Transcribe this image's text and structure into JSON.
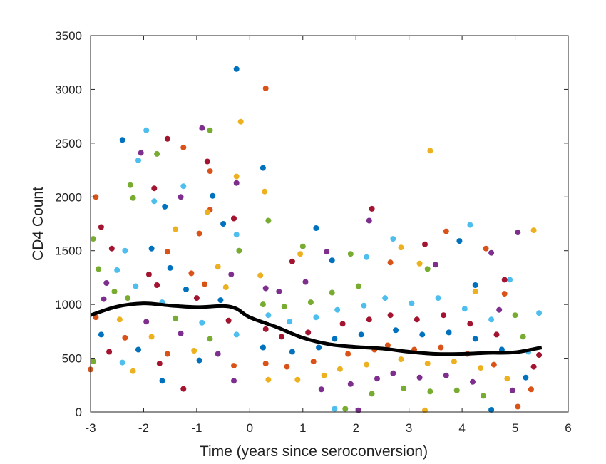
{
  "chart_data": {
    "type": "scatter",
    "xlabel": "Time (years since seroconversion)",
    "ylabel": "CD4 Count",
    "xlim": [
      -3,
      6
    ],
    "ylim": [
      0,
      3500
    ],
    "x_ticks": [
      "-3",
      "-2",
      "-1",
      "0",
      "1",
      "2",
      "3",
      "4",
      "5",
      "6"
    ],
    "y_ticks": [
      "0",
      "500",
      "1000",
      "1500",
      "2000",
      "2500",
      "3000",
      "3500"
    ],
    "grid": false,
    "legend": "none",
    "point_colors": [
      "#0072BD",
      "#D95319",
      "#EDB120",
      "#7E2F8E",
      "#77AC30",
      "#4DBEEE",
      "#A2142F"
    ],
    "smooth_curve": {
      "color": "#000000",
      "x": [
        -3,
        -2.5,
        -2,
        -1.5,
        -1,
        -0.5,
        -0.25,
        0,
        0.5,
        1,
        1.5,
        2,
        2.5,
        3,
        3.5,
        4,
        4.5,
        5,
        5.5
      ],
      "y": [
        900,
        980,
        1010,
        990,
        975,
        985,
        960,
        880,
        790,
        690,
        630,
        605,
        590,
        560,
        540,
        540,
        550,
        555,
        600
      ]
    },
    "points": [
      {
        "x": -0.25,
        "y": 3190
      },
      {
        "x": 0.3,
        "y": 3010
      },
      {
        "x": -0.17,
        "y": 2700
      },
      {
        "x": -0.9,
        "y": 2640
      },
      {
        "x": -0.75,
        "y": 2620
      },
      {
        "x": -1.95,
        "y": 2620
      },
      {
        "x": -1.55,
        "y": 2540
      },
      {
        "x": -2.4,
        "y": 2530
      },
      {
        "x": -1.25,
        "y": 2460
      },
      {
        "x": 3.4,
        "y": 2430
      },
      {
        "x": -2.05,
        "y": 2410
      },
      {
        "x": -1.75,
        "y": 2400
      },
      {
        "x": -2.1,
        "y": 2340
      },
      {
        "x": -0.8,
        "y": 2330
      },
      {
        "x": 0.25,
        "y": 2270
      },
      {
        "x": -0.75,
        "y": 2240
      },
      {
        "x": -0.25,
        "y": 2190
      },
      {
        "x": -0.25,
        "y": 2130
      },
      {
        "x": -2.25,
        "y": 2110
      },
      {
        "x": -1.25,
        "y": 2100
      },
      {
        "x": -1.8,
        "y": 2080
      },
      {
        "x": -0.7,
        "y": 2010
      },
      {
        "x": -2.9,
        "y": 2000
      },
      {
        "x": 0.28,
        "y": 2050
      },
      {
        "x": -1.3,
        "y": 2000
      },
      {
        "x": -2.2,
        "y": 1990
      },
      {
        "x": -1.8,
        "y": 1960
      },
      {
        "x": 2.3,
        "y": 1890
      },
      {
        "x": -1.6,
        "y": 1910
      },
      {
        "x": -0.75,
        "y": 1880
      },
      {
        "x": -0.8,
        "y": 1860
      },
      {
        "x": 2.25,
        "y": 1780
      },
      {
        "x": 0.35,
        "y": 1780
      },
      {
        "x": 4.15,
        "y": 1740
      },
      {
        "x": -2.8,
        "y": 1720
      },
      {
        "x": 1.25,
        "y": 1710
      },
      {
        "x": 3.7,
        "y": 1680
      },
      {
        "x": 5.35,
        "y": 1690
      },
      {
        "x": 5.05,
        "y": 1670
      },
      {
        "x": -2.95,
        "y": 1610
      },
      {
        "x": 2.7,
        "y": 1610
      },
      {
        "x": 3.3,
        "y": 1560
      },
      {
        "x": 3.95,
        "y": 1590
      },
      {
        "x": 4.45,
        "y": 1520
      },
      {
        "x": 2.85,
        "y": 1530
      },
      {
        "x": 4.55,
        "y": 1480
      },
      {
        "x": 1.0,
        "y": 1540
      },
      {
        "x": -2.35,
        "y": 1500
      },
      {
        "x": -2.6,
        "y": 1520
      },
      {
        "x": -1.85,
        "y": 1520
      },
      {
        "x": -1.55,
        "y": 1490
      },
      {
        "x": 0.95,
        "y": 1470
      },
      {
        "x": 1.45,
        "y": 1490
      },
      {
        "x": 1.9,
        "y": 1470
      },
      {
        "x": 2.2,
        "y": 1440
      },
      {
        "x": 0.8,
        "y": 1400
      },
      {
        "x": 1.55,
        "y": 1410
      },
      {
        "x": 2.65,
        "y": 1390
      },
      {
        "x": 3.2,
        "y": 1380
      },
      {
        "x": 3.5,
        "y": 1370
      },
      {
        "x": 3.35,
        "y": 1330
      },
      {
        "x": 4.9,
        "y": 1230
      },
      {
        "x": 4.8,
        "y": 1230
      },
      {
        "x": 4.25,
        "y": 1180
      },
      {
        "x": 4.8,
        "y": 1100
      },
      {
        "x": 4.25,
        "y": 1120
      },
      {
        "x": 4.7,
        "y": 950
      },
      {
        "x": 5.0,
        "y": 900
      },
      {
        "x": 5.45,
        "y": 920
      },
      {
        "x": 5.45,
        "y": 530
      },
      {
        "x": 4.55,
        "y": 20
      },
      {
        "x": 5.05,
        "y": 50
      },
      {
        "x": 3.3,
        "y": 15
      },
      {
        "x": 2.05,
        "y": 15
      },
      {
        "x": 1.8,
        "y": 30
      },
      {
        "x": 1.6,
        "y": 30
      },
      {
        "x": -1.25,
        "y": 215
      },
      {
        "x": -1.65,
        "y": 290
      },
      {
        "x": -3.0,
        "y": 395
      },
      {
        "x": -2.2,
        "y": 380
      },
      {
        "x": -0.3,
        "y": 290
      },
      {
        "x": -2.85,
        "y": 1330
      },
      {
        "x": -2.5,
        "y": 1320
      },
      {
        "x": -1.9,
        "y": 1280
      },
      {
        "x": -1.5,
        "y": 1340
      },
      {
        "x": -1.1,
        "y": 1290
      },
      {
        "x": -0.6,
        "y": 1350
      },
      {
        "x": -0.35,
        "y": 1280
      },
      {
        "x": -0.2,
        "y": 1500
      },
      {
        "x": -0.25,
        "y": 1650
      },
      {
        "x": -0.3,
        "y": 1800
      },
      {
        "x": -0.5,
        "y": 1750
      },
      {
        "x": -0.95,
        "y": 1660
      },
      {
        "x": -1.4,
        "y": 1700
      },
      {
        "x": -2.7,
        "y": 1200
      },
      {
        "x": -2.55,
        "y": 1120
      },
      {
        "x": -2.15,
        "y": 1170
      },
      {
        "x": -1.75,
        "y": 1180
      },
      {
        "x": -1.2,
        "y": 1140
      },
      {
        "x": -0.85,
        "y": 1190
      },
      {
        "x": -0.45,
        "y": 1160
      },
      {
        "x": -2.75,
        "y": 1050
      },
      {
        "x": -2.3,
        "y": 1060
      },
      {
        "x": -1.65,
        "y": 1020
      },
      {
        "x": -1.0,
        "y": 1060
      },
      {
        "x": -0.55,
        "y": 1040
      },
      {
        "x": -2.9,
        "y": 880
      },
      {
        "x": -2.45,
        "y": 860
      },
      {
        "x": -1.95,
        "y": 840
      },
      {
        "x": -1.4,
        "y": 870
      },
      {
        "x": -0.9,
        "y": 830
      },
      {
        "x": -0.4,
        "y": 850
      },
      {
        "x": -2.8,
        "y": 720
      },
      {
        "x": -2.35,
        "y": 690
      },
      {
        "x": -1.85,
        "y": 700
      },
      {
        "x": -1.3,
        "y": 730
      },
      {
        "x": -0.75,
        "y": 680
      },
      {
        "x": -0.25,
        "y": 720
      },
      {
        "x": -2.65,
        "y": 560
      },
      {
        "x": -2.1,
        "y": 580
      },
      {
        "x": -1.55,
        "y": 540
      },
      {
        "x": -1.05,
        "y": 570
      },
      {
        "x": -0.6,
        "y": 540
      },
      {
        "x": -2.95,
        "y": 470
      },
      {
        "x": -2.4,
        "y": 460
      },
      {
        "x": -1.7,
        "y": 450
      },
      {
        "x": -0.95,
        "y": 480
      },
      {
        "x": -0.3,
        "y": 430
      },
      {
        "x": 0.2,
        "y": 1270
      },
      {
        "x": 0.3,
        "y": 1150
      },
      {
        "x": 0.25,
        "y": 1000
      },
      {
        "x": 0.35,
        "y": 900
      },
      {
        "x": 0.3,
        "y": 770
      },
      {
        "x": 0.25,
        "y": 600
      },
      {
        "x": 0.3,
        "y": 450
      },
      {
        "x": 0.35,
        "y": 300
      },
      {
        "x": 0.55,
        "y": 1120
      },
      {
        "x": 0.65,
        "y": 980
      },
      {
        "x": 0.75,
        "y": 840
      },
      {
        "x": 0.6,
        "y": 700
      },
      {
        "x": 0.8,
        "y": 560
      },
      {
        "x": 0.7,
        "y": 420
      },
      {
        "x": 0.9,
        "y": 300
      },
      {
        "x": 1.05,
        "y": 1210
      },
      {
        "x": 1.15,
        "y": 1020
      },
      {
        "x": 1.25,
        "y": 880
      },
      {
        "x": 1.1,
        "y": 740
      },
      {
        "x": 1.3,
        "y": 600
      },
      {
        "x": 1.2,
        "y": 470
      },
      {
        "x": 1.4,
        "y": 340
      },
      {
        "x": 1.35,
        "y": 210
      },
      {
        "x": 1.55,
        "y": 1110
      },
      {
        "x": 1.65,
        "y": 950
      },
      {
        "x": 1.75,
        "y": 820
      },
      {
        "x": 1.6,
        "y": 680
      },
      {
        "x": 1.85,
        "y": 540
      },
      {
        "x": 1.7,
        "y": 400
      },
      {
        "x": 1.9,
        "y": 260
      },
      {
        "x": 2.05,
        "y": 1170
      },
      {
        "x": 2.15,
        "y": 990
      },
      {
        "x": 2.25,
        "y": 860
      },
      {
        "x": 2.1,
        "y": 720
      },
      {
        "x": 2.35,
        "y": 580
      },
      {
        "x": 2.2,
        "y": 440
      },
      {
        "x": 2.4,
        "y": 310
      },
      {
        "x": 2.3,
        "y": 170
      },
      {
        "x": 2.55,
        "y": 1060
      },
      {
        "x": 2.65,
        "y": 900
      },
      {
        "x": 2.75,
        "y": 760
      },
      {
        "x": 2.6,
        "y": 620
      },
      {
        "x": 2.85,
        "y": 490
      },
      {
        "x": 2.7,
        "y": 360
      },
      {
        "x": 2.9,
        "y": 220
      },
      {
        "x": 3.05,
        "y": 1010
      },
      {
        "x": 3.15,
        "y": 860
      },
      {
        "x": 3.25,
        "y": 720
      },
      {
        "x": 3.1,
        "y": 580
      },
      {
        "x": 3.35,
        "y": 450
      },
      {
        "x": 3.2,
        "y": 320
      },
      {
        "x": 3.4,
        "y": 190
      },
      {
        "x": 3.55,
        "y": 1060
      },
      {
        "x": 3.65,
        "y": 900
      },
      {
        "x": 3.75,
        "y": 740
      },
      {
        "x": 3.6,
        "y": 600
      },
      {
        "x": 3.85,
        "y": 470
      },
      {
        "x": 3.7,
        "y": 340
      },
      {
        "x": 3.9,
        "y": 200
      },
      {
        "x": 4.05,
        "y": 960
      },
      {
        "x": 4.15,
        "y": 820
      },
      {
        "x": 4.25,
        "y": 680
      },
      {
        "x": 4.1,
        "y": 540
      },
      {
        "x": 4.35,
        "y": 410
      },
      {
        "x": 4.2,
        "y": 280
      },
      {
        "x": 4.4,
        "y": 150
      },
      {
        "x": 4.55,
        "y": 860
      },
      {
        "x": 4.65,
        "y": 720
      },
      {
        "x": 4.75,
        "y": 580
      },
      {
        "x": 4.6,
        "y": 440
      },
      {
        "x": 4.85,
        "y": 310
      },
      {
        "x": 4.95,
        "y": 200
      },
      {
        "x": 5.15,
        "y": 700
      },
      {
        "x": 5.25,
        "y": 560
      },
      {
        "x": 5.35,
        "y": 420
      },
      {
        "x": 5.2,
        "y": 320
      },
      {
        "x": 5.3,
        "y": 210
      }
    ]
  }
}
